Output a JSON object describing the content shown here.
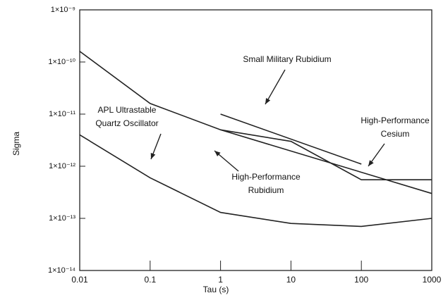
{
  "chart_data": {
    "type": "line",
    "xlabel": "Tau (s)",
    "ylabel": "Sigma",
    "log_x": true,
    "log_y": true,
    "xlim": [
      0.01,
      1000
    ],
    "ylim": [
      1e-14,
      1e-09
    ],
    "xticks": [
      0.01,
      0.1,
      1,
      10,
      100,
      1000
    ],
    "yticks": [
      {
        "value": 1e-14,
        "label": "1×10⁻¹⁴"
      },
      {
        "value": 1e-13,
        "label": "1×10⁻¹³"
      },
      {
        "value": 1e-12,
        "label": "1×10⁻¹²"
      },
      {
        "value": 1e-11,
        "label": "1×10⁻¹¹"
      },
      {
        "value": 1e-10,
        "label": "1×10⁻¹⁰"
      },
      {
        "value": 1e-09,
        "label": "1×10⁻⁹"
      }
    ],
    "series": [
      {
        "label": [
          "APL Ultrastable",
          "Quartz Oscillator"
        ],
        "color": "#222222",
        "x": [
          0.01,
          0.1,
          1,
          10,
          100,
          1000
        ],
        "values": [
          4e-12,
          6e-13,
          1.3e-13,
          8e-14,
          7e-14,
          1e-13
        ]
      },
      {
        "label": [
          "High-Performance",
          "Cesium"
        ],
        "color": "#222222",
        "x": [
          0.01,
          0.1,
          1,
          1000
        ],
        "values": [
          1.6e-10,
          1.6e-11,
          5e-12,
          3e-13
        ]
      },
      {
        "label": [
          "High-Performance",
          "Rubidium"
        ],
        "color": "#222222",
        "x": [
          1,
          10,
          100,
          1000
        ],
        "values": [
          5e-12,
          3e-12,
          5.5e-13,
          5.5e-13
        ]
      },
      {
        "label": [
          "Small Military Rubidium"
        ],
        "color": "#222222",
        "x": [
          1,
          100
        ],
        "values": [
          1e-11,
          1.1e-12
        ]
      }
    ]
  }
}
